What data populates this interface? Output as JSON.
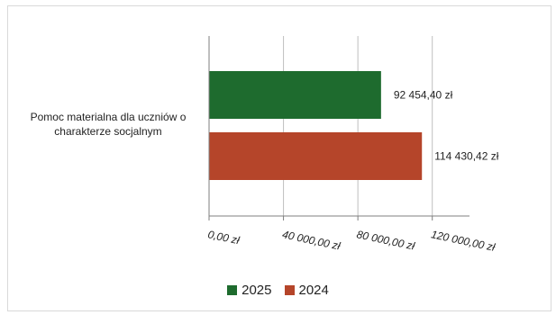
{
  "chart_data": {
    "type": "bar",
    "orientation": "horizontal",
    "categories": [
      "Pomoc materialna dla uczniów o charakterze socjalnym"
    ],
    "category_label_lines": [
      "Pomoc materialna dla uczniów o",
      "charakterze socjalnym"
    ],
    "series": [
      {
        "name": "2025",
        "values": [
          92454.4
        ],
        "value_labels": [
          "92 454,40 zł"
        ],
        "color": "#1e6b2e"
      },
      {
        "name": "2024",
        "values": [
          114430.42
        ],
        "value_labels": [
          "114 430,42 zł"
        ],
        "color": "#b5452a"
      }
    ],
    "x_ticks": [
      0,
      40000,
      80000,
      120000
    ],
    "x_tick_labels": [
      "0,00 zł",
      "40 000,00 zł",
      "80 000,00 zł",
      "120 000,00 zł"
    ],
    "xlim": [
      0,
      140000
    ],
    "grid": "vertical",
    "legend_position": "bottom"
  }
}
